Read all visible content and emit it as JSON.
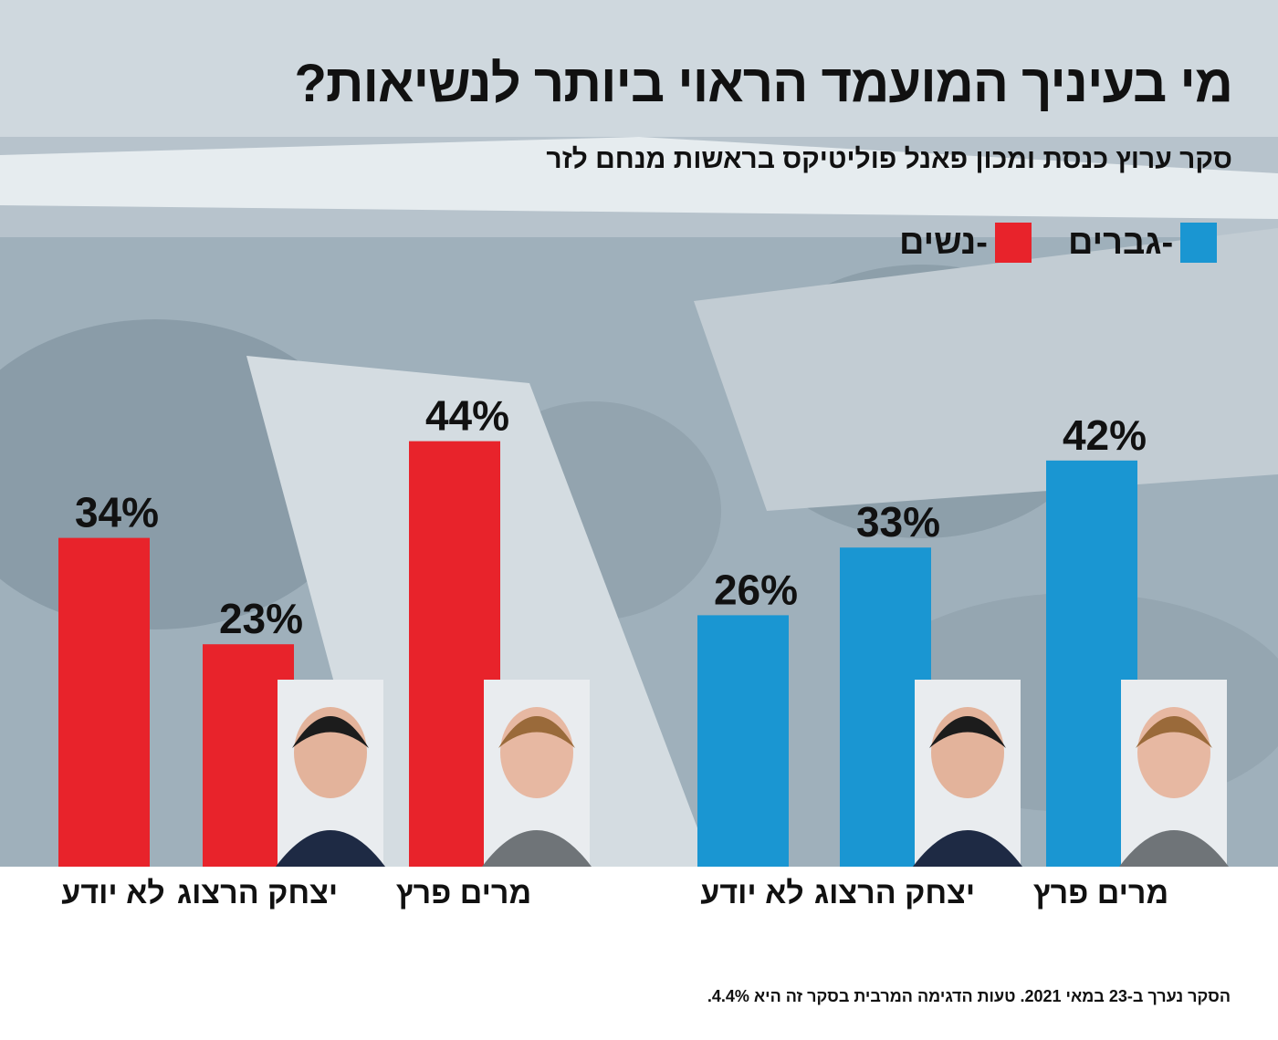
{
  "title": "מי בעיניך המועמד הראוי ביותר לנשיאות?",
  "subtitle": "סקר ערוץ כנסת ומכון פאנל פוליטיקס בראשות מנחם לזר",
  "legend": {
    "men": {
      "label": "-גברים",
      "color": "#1a96d2"
    },
    "women": {
      "label": "-נשים",
      "color": "#e8232b"
    }
  },
  "footnote": "הסקר נערך ב-23 במאי 2021.  טעות הדגימה המרבית בסקר זה היא 4.4%.",
  "chart_data": {
    "type": "bar",
    "ylim": [
      0,
      50
    ],
    "grid": false,
    "legend_position": "top-right",
    "unit": "%",
    "groups": [
      {
        "series": "-נשים",
        "color": "#e8232b",
        "categories": [
          "לא יודע",
          "יצחק הרצוג",
          "מרים פרץ"
        ],
        "values": [
          34,
          23,
          44
        ],
        "labels": [
          "34%",
          "23%",
          "44%"
        ]
      },
      {
        "series": "-גברים",
        "color": "#1a96d2",
        "categories": [
          "לא יודע",
          "יצחק הרצוג",
          "מרים פרץ"
        ],
        "values": [
          26,
          33,
          42
        ],
        "labels": [
          "26%",
          "33%",
          "42%"
        ]
      }
    ]
  }
}
